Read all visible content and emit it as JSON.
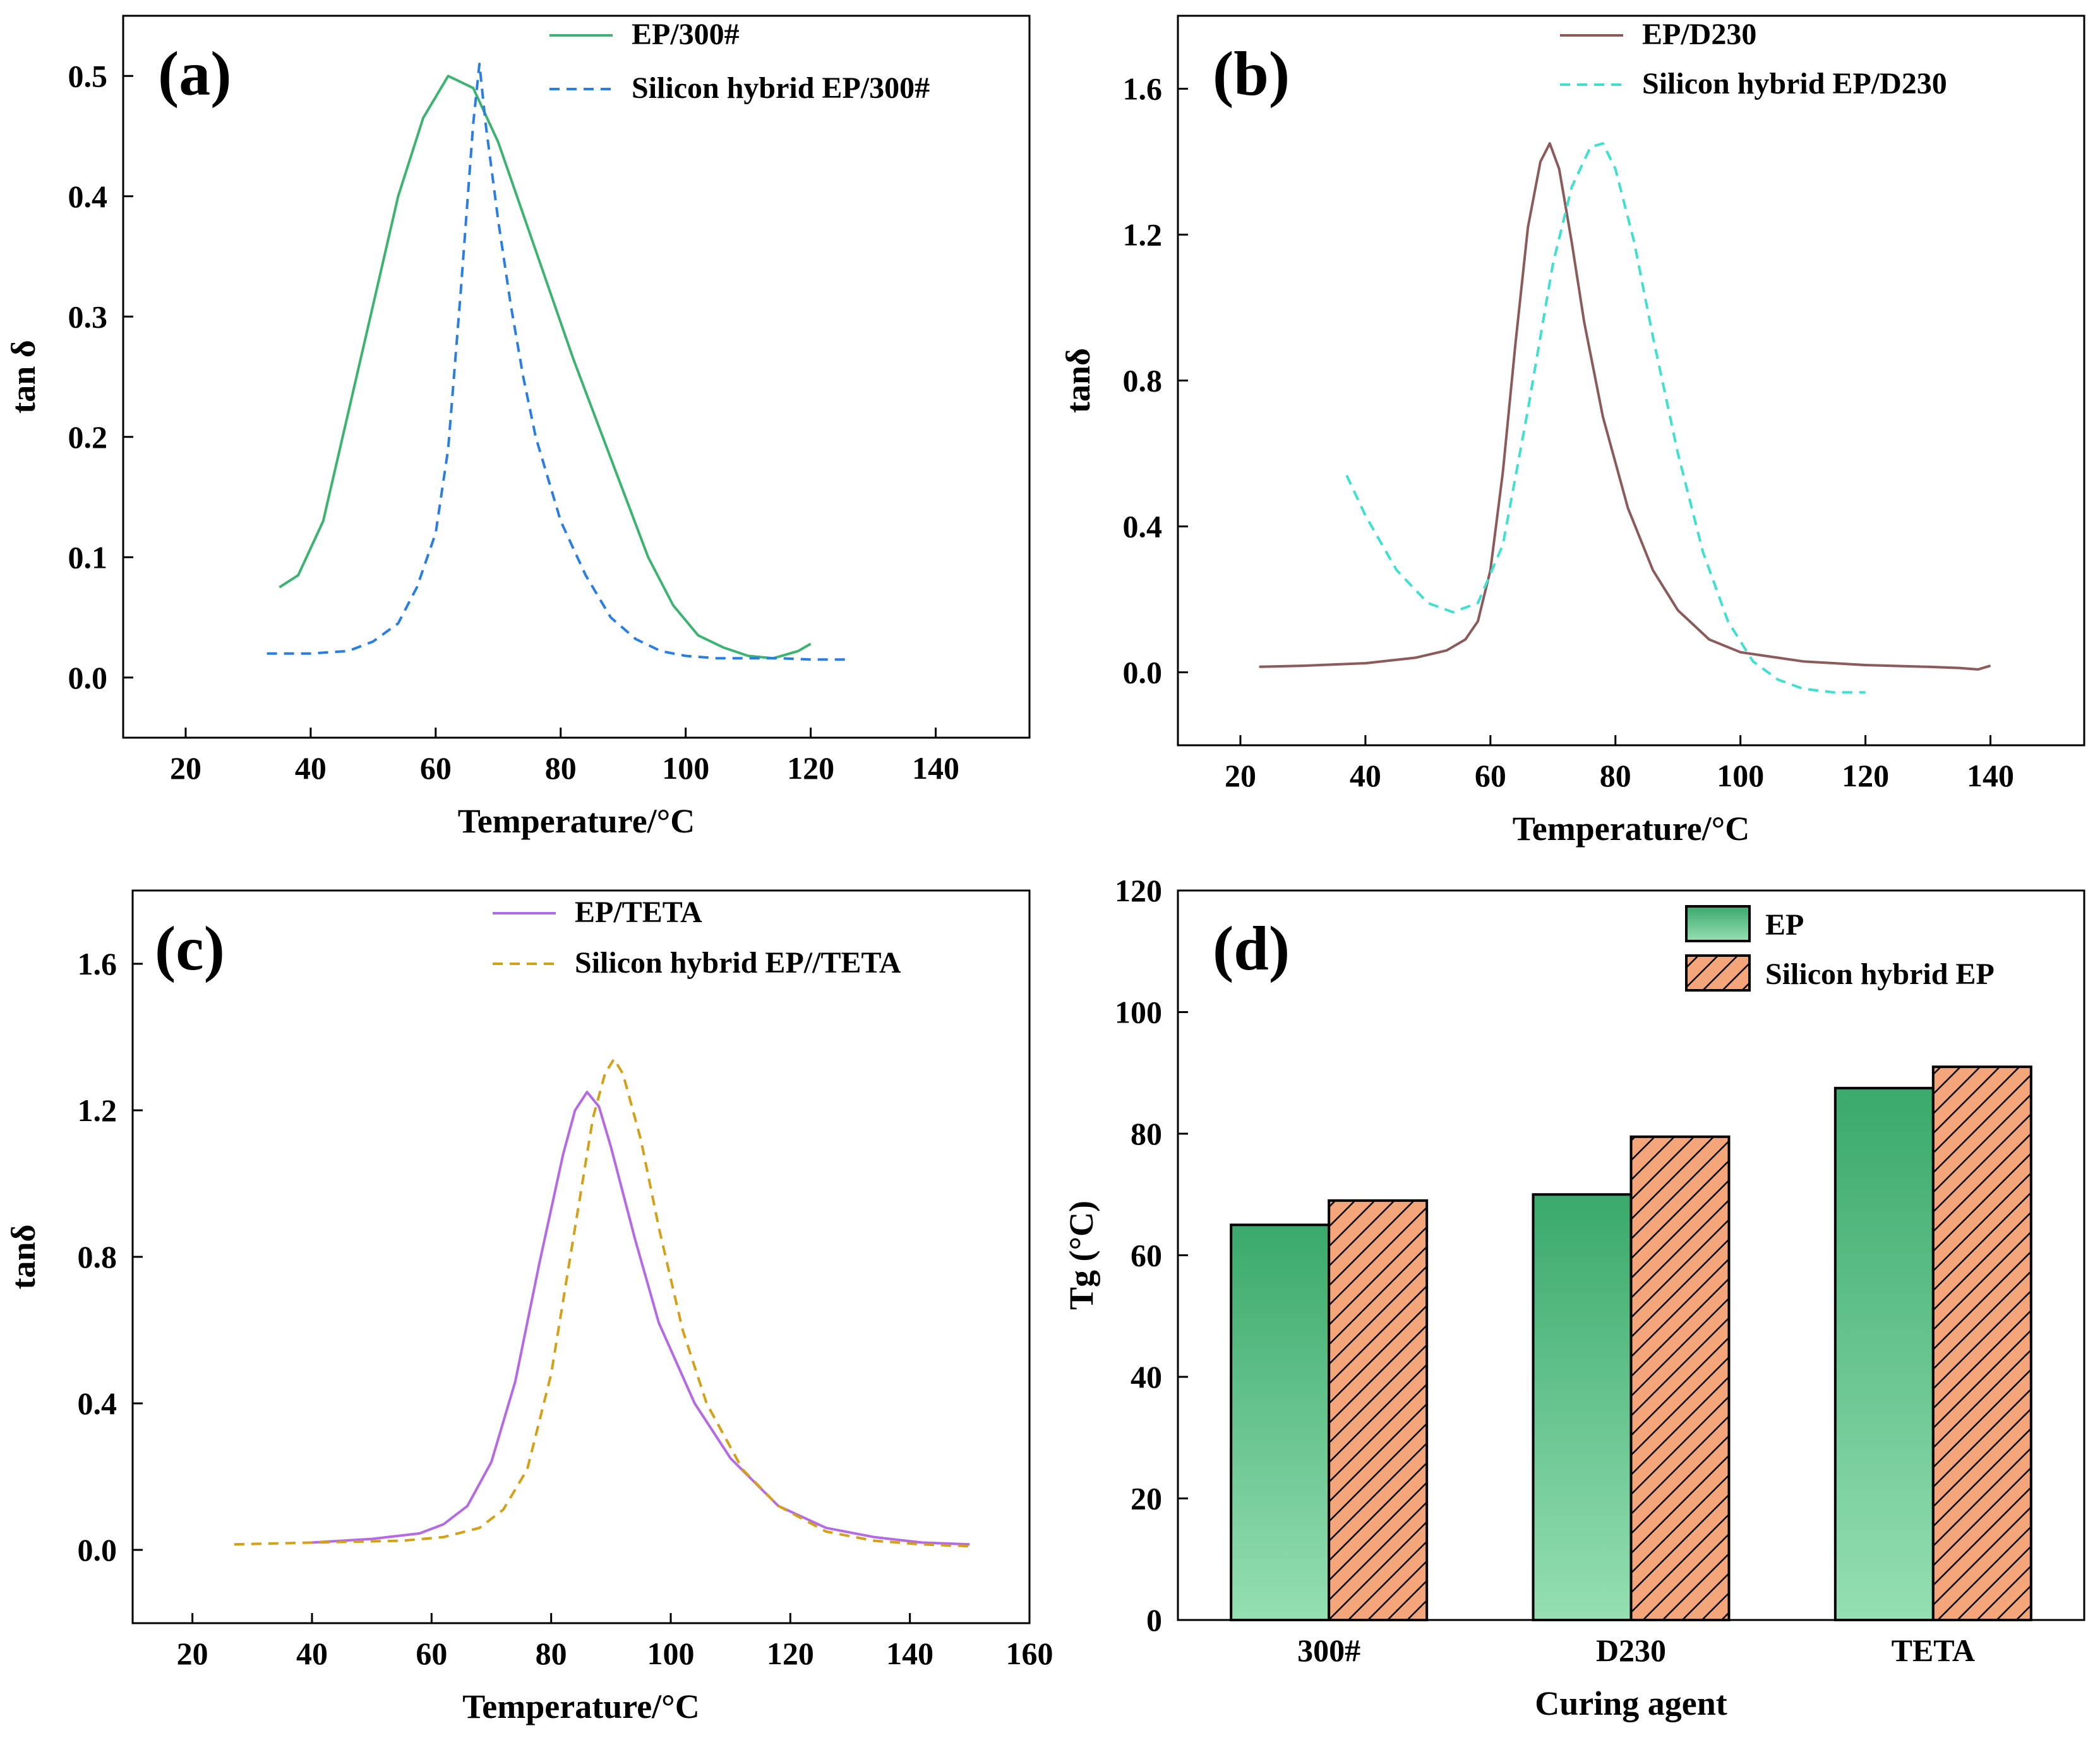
{
  "figure": {
    "panels": [
      "(a)",
      "(b)",
      "(c)",
      "(d)"
    ]
  },
  "chart_data": [
    {
      "id": "a",
      "type": "line",
      "panel_label": "(a)",
      "xlabel": "Temperature/°C",
      "ylabel": "tan δ",
      "xlim": [
        10,
        155
      ],
      "ylim": [
        -0.05,
        0.55
      ],
      "xticks": [
        "20",
        "40",
        "60",
        "80",
        "100",
        "120",
        "140"
      ],
      "yticks": [
        "0.0",
        "0.1",
        "0.2",
        "0.3",
        "0.4",
        "0.5"
      ],
      "legend_position": "top-right",
      "series": [
        {
          "name": "EP/300#",
          "style": "solid",
          "color": "#3cb371",
          "x": [
            35,
            38,
            42,
            46,
            50,
            54,
            58,
            62,
            66,
            70,
            74,
            78,
            82,
            86,
            90,
            94,
            98,
            102,
            106,
            110,
            114,
            118,
            120
          ],
          "y": [
            0.075,
            0.085,
            0.13,
            0.22,
            0.31,
            0.4,
            0.465,
            0.5,
            0.49,
            0.445,
            0.385,
            0.325,
            0.265,
            0.21,
            0.155,
            0.1,
            0.06,
            0.035,
            0.025,
            0.018,
            0.016,
            0.022,
            0.028
          ]
        },
        {
          "name": "Silicon hybrid EP/300#",
          "style": "dashed",
          "color": "#2a7de1",
          "x": [
            33,
            40,
            46,
            50,
            54,
            57,
            60,
            62,
            64,
            66,
            67,
            68,
            70,
            72,
            74,
            76,
            80,
            84,
            88,
            92,
            96,
            100,
            105,
            110,
            115,
            120,
            126
          ],
          "y": [
            0.02,
            0.02,
            0.022,
            0.03,
            0.045,
            0.075,
            0.12,
            0.19,
            0.32,
            0.46,
            0.51,
            0.46,
            0.38,
            0.31,
            0.25,
            0.2,
            0.13,
            0.085,
            0.05,
            0.032,
            0.022,
            0.018,
            0.016,
            0.016,
            0.016,
            0.015,
            0.015
          ]
        }
      ]
    },
    {
      "id": "b",
      "type": "line",
      "panel_label": "(b)",
      "xlabel": "Temperature/°C",
      "ylabel": "tanδ",
      "xlim": [
        10,
        155
      ],
      "ylim": [
        -0.2,
        1.8
      ],
      "xticks": [
        "20",
        "40",
        "60",
        "80",
        "100",
        "120",
        "140"
      ],
      "yticks": [
        "0.0",
        "0.4",
        "0.8",
        "1.2",
        "1.6"
      ],
      "legend_position": "top-right",
      "series": [
        {
          "name": "EP/D230",
          "style": "solid",
          "color": "#8b5a5a",
          "x": [
            23,
            30,
            40,
            48,
            53,
            56,
            58,
            60,
            62,
            64,
            66,
            68,
            69.5,
            71,
            73,
            75,
            78,
            82,
            86,
            90,
            95,
            100,
            110,
            120,
            130,
            135,
            138,
            140
          ],
          "y": [
            0.015,
            0.018,
            0.025,
            0.04,
            0.06,
            0.09,
            0.14,
            0.28,
            0.55,
            0.9,
            1.22,
            1.4,
            1.45,
            1.38,
            1.18,
            0.96,
            0.7,
            0.45,
            0.28,
            0.17,
            0.09,
            0.055,
            0.03,
            0.02,
            0.015,
            0.012,
            0.008,
            0.018
          ]
        },
        {
          "name": "Silicon hybrid EP/D230",
          "style": "dashed",
          "color": "#40e0d0",
          "x": [
            37,
            40,
            45,
            50,
            54,
            58,
            62,
            66,
            70,
            73,
            76,
            78,
            80,
            83,
            86,
            90,
            94,
            98,
            102,
            106,
            110,
            115,
            120
          ],
          "y": [
            0.54,
            0.43,
            0.28,
            0.19,
            0.165,
            0.19,
            0.35,
            0.72,
            1.12,
            1.33,
            1.44,
            1.45,
            1.38,
            1.18,
            0.92,
            0.6,
            0.33,
            0.14,
            0.03,
            -0.02,
            -0.045,
            -0.055,
            -0.055
          ]
        }
      ]
    },
    {
      "id": "c",
      "type": "line",
      "panel_label": "(c)",
      "xlabel": "Temperature/°C",
      "ylabel": "tanδ",
      "xlim": [
        10,
        160
      ],
      "ylim": [
        -0.2,
        1.8
      ],
      "xticks": [
        "20",
        "40",
        "60",
        "80",
        "100",
        "120",
        "140",
        "160"
      ],
      "yticks": [
        "0.0",
        "0.4",
        "0.8",
        "1.2",
        "1.6"
      ],
      "legend_position": "top-right",
      "series": [
        {
          "name": "EP/TETA",
          "style": "solid",
          "color": "#b36ae2",
          "x": [
            40,
            50,
            58,
            62,
            66,
            70,
            74,
            78,
            82,
            84,
            86,
            88,
            90,
            94,
            98,
            104,
            110,
            118,
            126,
            134,
            142,
            150
          ],
          "y": [
            0.02,
            0.03,
            0.045,
            0.07,
            0.12,
            0.24,
            0.46,
            0.78,
            1.08,
            1.2,
            1.25,
            1.21,
            1.1,
            0.85,
            0.62,
            0.4,
            0.25,
            0.12,
            0.06,
            0.035,
            0.02,
            0.015
          ]
        },
        {
          "name": "Silicon hybrid EP//TETA",
          "style": "dashed",
          "color": "#d4a017",
          "x": [
            27,
            40,
            55,
            62,
            68,
            72,
            76,
            80,
            84,
            87,
            89,
            90.5,
            92,
            95,
            98,
            102,
            106,
            112,
            118,
            126,
            134,
            142,
            150
          ],
          "y": [
            0.015,
            0.02,
            0.025,
            0.035,
            0.06,
            0.11,
            0.22,
            0.48,
            0.88,
            1.18,
            1.3,
            1.34,
            1.3,
            1.12,
            0.88,
            0.6,
            0.4,
            0.22,
            0.12,
            0.05,
            0.025,
            0.015,
            0.01
          ]
        }
      ]
    },
    {
      "id": "d",
      "type": "bar",
      "panel_label": "(d)",
      "xlabel": "Curing agent",
      "ylabel": "Tg (°C)",
      "ylim": [
        0,
        120
      ],
      "yticks": [
        "0",
        "20",
        "40",
        "60",
        "80",
        "100",
        "120"
      ],
      "categories": [
        "300#",
        "D230",
        "TETA"
      ],
      "legend_position": "top-right",
      "series": [
        {
          "name": "EP",
          "color": "#3aa96a",
          "values": [
            65,
            70,
            87.5
          ]
        },
        {
          "name": "Silicon hybrid EP",
          "color": "#f4a57a",
          "values": [
            69,
            79.5,
            91
          ]
        }
      ]
    }
  ]
}
